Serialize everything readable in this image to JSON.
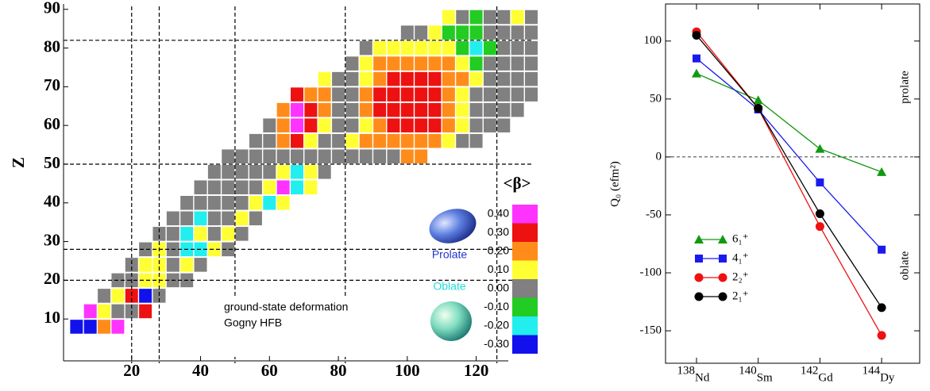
{
  "chart_data": [
    {
      "type": "heatmap",
      "y_label": "Z",
      "xlim": [
        0,
        136
      ],
      "ylim": [
        0,
        92
      ],
      "xticks": [
        20,
        40,
        60,
        80,
        100,
        120
      ],
      "yticks": [
        10,
        20,
        30,
        40,
        50,
        60,
        70,
        80,
        90
      ],
      "magic_n": [
        20,
        28,
        50,
        82,
        126
      ],
      "magic_z": [
        20,
        28,
        50,
        82
      ],
      "n_step": 4,
      "rows": [
        {
          "z": 8,
          "n_start": 4,
          "values": [
            -0.3,
            -0.3,
            0.2,
            0.4
          ]
        },
        {
          "z": 12,
          "n_start": 8,
          "values": [
            0.4,
            0.1,
            0,
            0,
            0.3
          ]
        },
        {
          "z": 16,
          "n_start": 12,
          "values": [
            0,
            0.1,
            0.3,
            -0.3,
            0
          ]
        },
        {
          "z": 20,
          "n_start": 16,
          "values": [
            0,
            0,
            0.1,
            0.1,
            0,
            0
          ]
        },
        {
          "z": 24,
          "n_start": 20,
          "values": [
            0,
            0.1,
            0.1,
            0,
            0.1,
            0
          ]
        },
        {
          "z": 28,
          "n_start": 24,
          "values": [
            0,
            0.1,
            0,
            -0.2,
            -0.2,
            0.1,
            0
          ]
        },
        {
          "z": 32,
          "n_start": 28,
          "values": [
            0,
            0,
            -0.2,
            0.1,
            0,
            0.1,
            0
          ]
        },
        {
          "z": 36,
          "n_start": 32,
          "values": [
            0,
            0,
            -0.2,
            0,
            0,
            0.1,
            0
          ]
        },
        {
          "z": 40,
          "n_start": 36,
          "values": [
            0,
            0,
            0,
            0,
            0,
            0.1,
            -0.2,
            0.1
          ]
        },
        {
          "z": 44,
          "n_start": 40,
          "values": [
            0,
            0,
            0,
            0,
            0,
            0.1,
            0.4,
            -0.2,
            0.1
          ]
        },
        {
          "z": 48,
          "n_start": 44,
          "values": [
            0,
            0,
            0,
            0,
            0,
            0.1,
            -0.2,
            0.1,
            0
          ]
        },
        {
          "z": 52,
          "n_start": 48,
          "values": [
            0,
            0,
            0,
            0,
            0,
            0,
            0,
            0,
            0,
            0,
            0,
            0,
            0,
            0.2,
            0.2
          ]
        },
        {
          "z": 56,
          "n_start": 56,
          "values": [
            0,
            0,
            0.2,
            0.3,
            0.1,
            0,
            0,
            0.1,
            0.2,
            0.2,
            0.2,
            0.2,
            0.2,
            0.2,
            0.1,
            0,
            0
          ]
        },
        {
          "z": 60,
          "n_start": 60,
          "values": [
            0,
            0.2,
            0.4,
            0.3,
            0.1,
            0,
            0,
            0.1,
            0.2,
            0.3,
            0.3,
            0.3,
            0.3,
            0.2,
            0.1,
            0,
            0,
            0
          ]
        },
        {
          "z": 64,
          "n_start": 64,
          "values": [
            0.2,
            0.4,
            0.3,
            0.2,
            0,
            0,
            0.2,
            0.3,
            0.3,
            0.3,
            0.3,
            0.3,
            0.2,
            0.1,
            0,
            0,
            0,
            0
          ]
        },
        {
          "z": 68,
          "n_start": 68,
          "values": [
            0.3,
            0.2,
            0.2,
            0,
            0,
            0.2,
            0.3,
            0.3,
            0.3,
            0.3,
            0.3,
            0.2,
            0.1,
            0,
            0,
            0,
            0,
            0
          ]
        },
        {
          "z": 72,
          "n_start": 76,
          "values": [
            0.1,
            0,
            0,
            0.1,
            0.2,
            0.3,
            0.3,
            0.3,
            0.3,
            0.2,
            0.2,
            0.1,
            0,
            0,
            0,
            0
          ]
        },
        {
          "z": 76,
          "n_start": 84,
          "values": [
            0,
            0.1,
            0.2,
            0.2,
            0.2,
            0.2,
            0.2,
            0.2,
            0.1,
            -0.1,
            0,
            0,
            0,
            0
          ]
        },
        {
          "z": 80,
          "n_start": 88,
          "values": [
            0,
            0.1,
            0.1,
            0.1,
            0.1,
            0.1,
            0.1,
            -0.1,
            -0.2,
            -0.1,
            0,
            0,
            0
          ]
        },
        {
          "z": 84,
          "n_start": 100,
          "values": [
            0,
            0,
            0.1,
            -0.1,
            -0.1,
            -0.1,
            0,
            0,
            0,
            0
          ]
        },
        {
          "z": 88,
          "n_start": 112,
          "values": [
            0.1,
            0,
            -0.1,
            0,
            0,
            0.1,
            0
          ]
        }
      ],
      "legend_title": "<β>",
      "legend": [
        {
          "value": 0.4,
          "label": "0.40",
          "color": "#ff33ff"
        },
        {
          "value": 0.3,
          "label": "0.30",
          "color": "#ee1111"
        },
        {
          "value": 0.2,
          "label": "0.20",
          "color": "#ff8c1a"
        },
        {
          "value": 0.1,
          "label": "0.10",
          "color": "#ffff33"
        },
        {
          "value": 0,
          "label": "0.00",
          "color": "#808080"
        },
        {
          "value": -0.1,
          "label": "-0.10",
          "color": "#22cc22"
        },
        {
          "value": -0.2,
          "label": "-0.20",
          "color": "#22eeee"
        },
        {
          "value": -0.3,
          "label": "-0.30",
          "color": "#1111ee"
        }
      ],
      "prolate_label": "Prolate",
      "oblate_label": "Oblate",
      "annotation": [
        "ground-state deformation",
        "Gogny HFB"
      ]
    },
    {
      "type": "line",
      "y_label": "Q₀ (efm²)",
      "categories": [
        "Nd",
        "Sm",
        "Gd",
        "Dy"
      ],
      "mass_numbers": [
        138,
        140,
        142,
        144
      ],
      "ylim": [
        -178,
        132
      ],
      "yticks": [
        -150,
        -100,
        -50,
        0,
        50,
        100
      ],
      "reference_line": 0,
      "annotations": [
        "prolate",
        "oblate"
      ],
      "series": [
        {
          "name": "6₁⁺",
          "color": "#119911",
          "marker": "triangle",
          "values": [
            72,
            49,
            7,
            -13
          ]
        },
        {
          "name": "4₁⁺",
          "color": "#1a1aee",
          "marker": "square",
          "values": [
            85,
            41,
            -22,
            -80
          ]
        },
        {
          "name": "2₂⁺",
          "color": "#ee1111",
          "marker": "circle",
          "values": [
            108,
            42,
            -60,
            -154
          ]
        },
        {
          "name": "2₁⁺",
          "color": "#000000",
          "marker": "circle",
          "values": [
            105,
            42,
            -49,
            -130
          ]
        }
      ]
    }
  ]
}
